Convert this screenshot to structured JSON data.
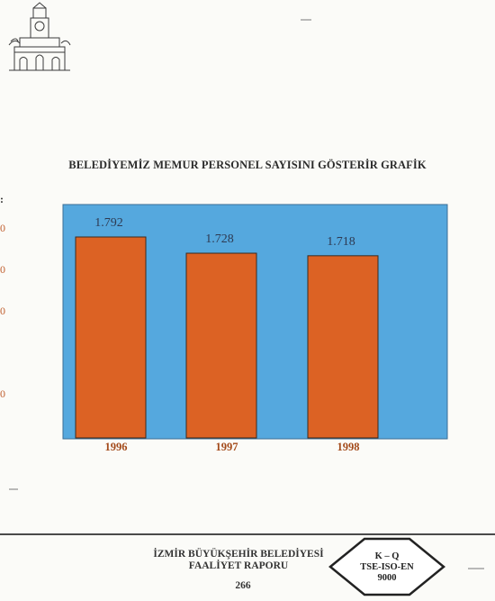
{
  "document": {
    "heading": "BELEDİYEMİZ MEMUR PERSONEL SAYISINI  GÖSTERİR GRAFİK",
    "left_edge_marks": [
      ":",
      "0",
      "0",
      "0",
      "0"
    ]
  },
  "chart_data": {
    "type": "bar",
    "categories": [
      "1996",
      "1997",
      "1998"
    ],
    "values": [
      1792,
      1728,
      1718
    ],
    "value_labels": [
      "1.792",
      "1.728",
      "1.718"
    ],
    "title": "BELEDİYEMİZ MEMUR PERSONEL SAYISINI  GÖSTERİR GRAFİK",
    "xlabel": "",
    "ylabel": "",
    "grid": false,
    "colors": {
      "background": "#55a8de",
      "bar": "#dc6224",
      "bar_edge": "#3d2a1e",
      "year_label": "#a34a1a"
    }
  },
  "footer": {
    "org_line1": "İZMİR BÜYÜKŞEHİR BELEDİYESİ",
    "org_line2": "FAALİYET RAPORU",
    "page_number": "266",
    "badge_lines": [
      "K – Q",
      "TSE-ISO-EN",
      "9000"
    ]
  }
}
